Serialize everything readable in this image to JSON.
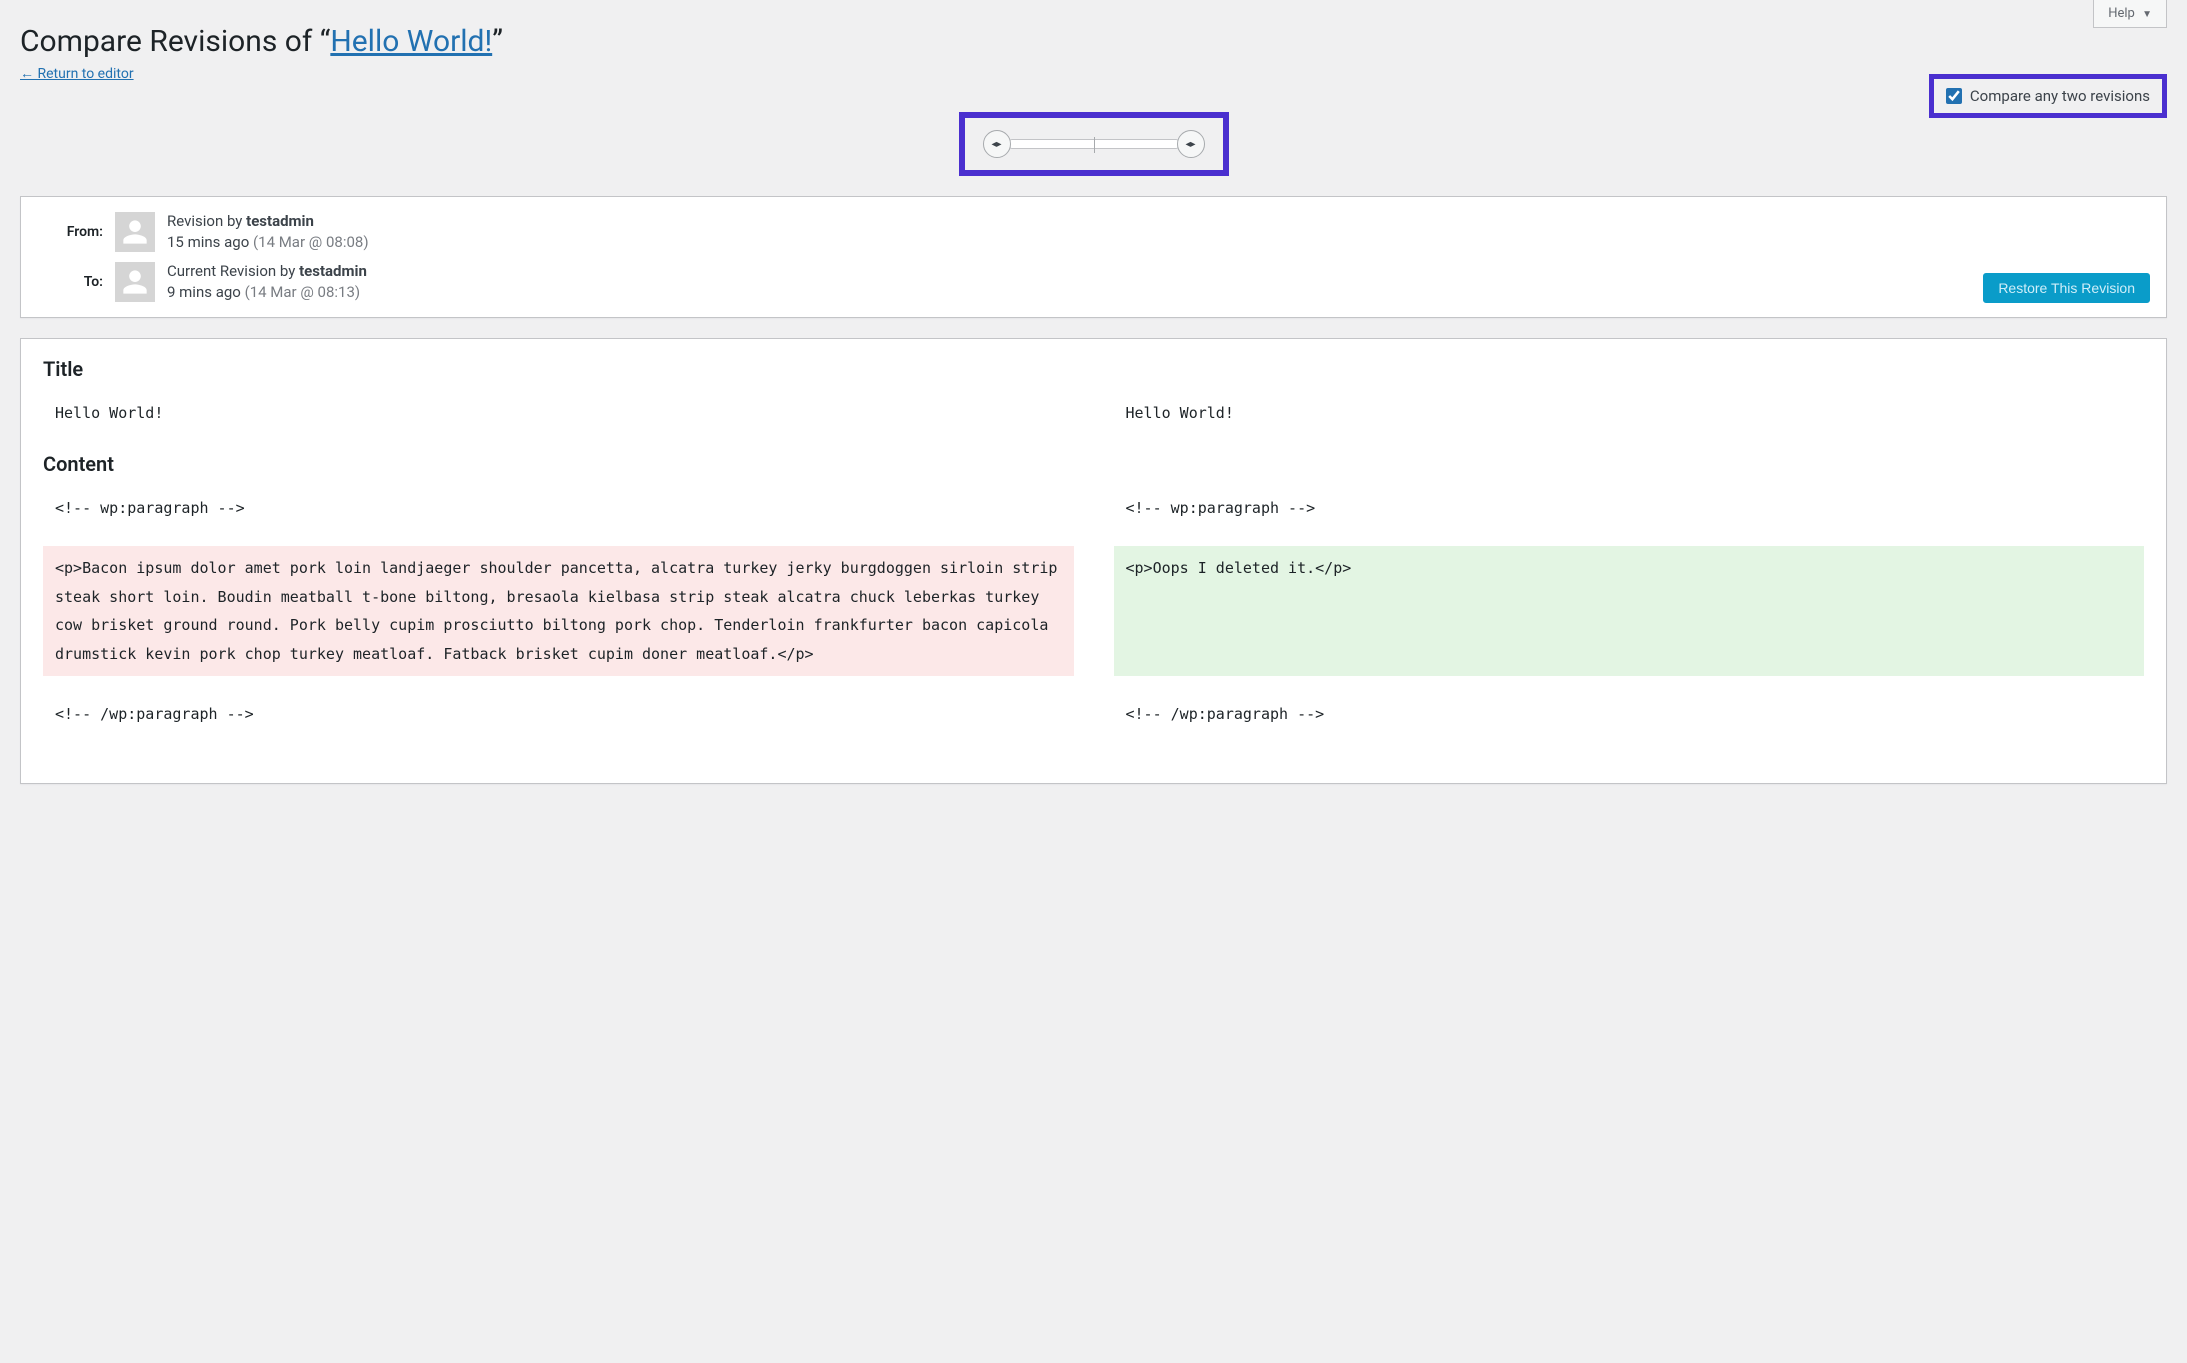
{
  "help": {
    "label": "Help"
  },
  "header": {
    "title_prefix": "Compare Revisions of “",
    "post_title": "Hello World!",
    "title_suffix": "”",
    "return_link": "← Return to editor"
  },
  "compare_toggle": {
    "checked": true,
    "label": "Compare any two revisions"
  },
  "slider": {
    "handle_glyph": "◂▸"
  },
  "meta": {
    "from_label": "From:",
    "to_label": "To:",
    "from": {
      "line_prefix": "Revision by ",
      "author": "testadmin",
      "time_ago": "15 mins ago ",
      "time_detail": "(14 Mar @ 08:08)"
    },
    "to": {
      "line_prefix": "Current Revision by ",
      "author": "testadmin",
      "time_ago": "9 mins ago ",
      "time_detail": "(14 Mar @ 08:13)"
    },
    "restore_label": "Restore This Revision"
  },
  "diff": {
    "title_heading": "Title",
    "content_heading": "Content",
    "title_left": "Hello World!",
    "title_right": "Hello World!",
    "rows": [
      {
        "left": "<!-- wp:paragraph -->",
        "right": "<!-- wp:paragraph -->",
        "left_class": "plain",
        "right_class": "plain"
      },
      {
        "left": "<p>Bacon ipsum dolor amet pork loin landjaeger shoulder pancetta, alcatra turkey jerky burgdoggen sirloin strip steak short loin. Boudin meatball t-bone biltong, bresaola kielbasa strip steak alcatra chuck leberkas turkey cow brisket ground round. Pork belly cupim prosciutto biltong pork chop. Tenderloin frankfurter bacon capicola drumstick kevin pork chop turkey meatloaf. Fatback brisket cupim doner meatloaf.</p>",
        "right": "<p>Oops I deleted it.</p>",
        "left_class": "removed",
        "right_class": "added"
      },
      {
        "left": "<!-- /wp:paragraph -->",
        "right": "<!-- /wp:paragraph -->",
        "left_class": "plain",
        "right_class": "plain"
      }
    ]
  },
  "colors": {
    "highlight_border": "#4a2fcf",
    "link": "#2271b1",
    "removed_bg": "#fce8e8",
    "added_bg": "#e3f5e3",
    "page_bg": "#f0f0f1",
    "restore_btn": "#0a9cc9"
  }
}
